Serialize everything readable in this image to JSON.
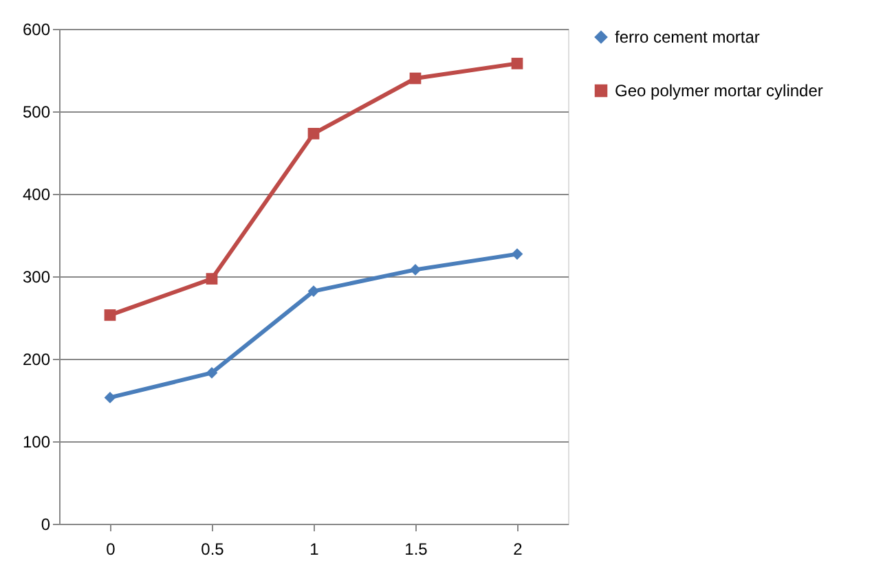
{
  "chart_data": {
    "type": "line",
    "categories": [
      "0",
      "0.5",
      "1",
      "1.5",
      "2"
    ],
    "series": [
      {
        "name": "ferro cement mortar",
        "color": "#4a7ebb",
        "marker": "diamond",
        "values": [
          153,
          183,
          282,
          308,
          327
        ]
      },
      {
        "name": "Geo polymer mortar cylinder",
        "color": "#be4b48",
        "marker": "square",
        "values": [
          253,
          297,
          473,
          540,
          558
        ]
      }
    ],
    "ylim": [
      0,
      600
    ],
    "yticks": [
      0,
      100,
      200,
      300,
      400,
      500,
      600
    ],
    "grid": "y",
    "legend": "right",
    "line_style": "solid"
  }
}
